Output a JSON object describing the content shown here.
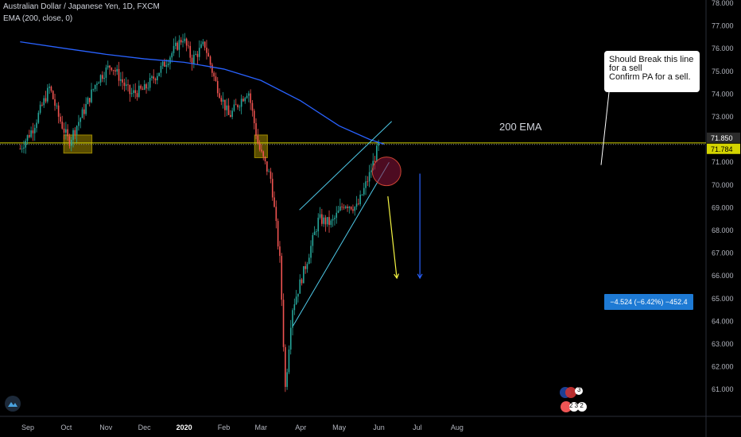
{
  "header": {
    "title": "Australian Dollar / Japanese Yen, 1D, FXCM",
    "indicator": "EMA (200, close, 0)"
  },
  "chart_data": {
    "type": "candlestick",
    "y_ticks": [
      61.0,
      62.0,
      63.0,
      64.0,
      65.0,
      66.0,
      67.0,
      68.0,
      69.0,
      70.0,
      71.0,
      73.0,
      74.0,
      75.0,
      76.0,
      77.0,
      78.0
    ],
    "x_ticks": [
      "Sep",
      "Oct",
      "Nov",
      "Dec",
      "2020",
      "Feb",
      "Mar",
      "Apr",
      "May",
      "Jun",
      "Jul",
      "Aug"
    ],
    "price_labels": [
      {
        "value": 71.85,
        "text": "71.850"
      },
      {
        "value": 71.784,
        "text": "71.784"
      }
    ],
    "ema_label": "200 EMA",
    "ema_points": [
      {
        "x": "2019-08-26",
        "y": 76.3
      },
      {
        "x": "2019-10-01",
        "y": 76.0
      },
      {
        "x": "2019-11-01",
        "y": 75.75
      },
      {
        "x": "2019-12-01",
        "y": 75.55
      },
      {
        "x": "2020-01-01",
        "y": 75.4
      },
      {
        "x": "2020-02-01",
        "y": 75.1
      },
      {
        "x": "2020-03-01",
        "y": 74.6
      },
      {
        "x": "2020-04-01",
        "y": 73.7
      },
      {
        "x": "2020-05-01",
        "y": 72.6
      },
      {
        "x": "2020-05-25",
        "y": 72.0
      },
      {
        "x": "2020-06-05",
        "y": 71.8
      }
    ],
    "price_path": [
      {
        "x": "2019-08-26",
        "y": 71.6
      },
      {
        "x": "2019-09-05",
        "y": 72.5
      },
      {
        "x": "2019-09-18",
        "y": 74.3
      },
      {
        "x": "2019-09-25",
        "y": 73.0
      },
      {
        "x": "2019-10-03",
        "y": 71.9
      },
      {
        "x": "2019-10-15",
        "y": 73.3
      },
      {
        "x": "2019-10-25",
        "y": 74.6
      },
      {
        "x": "2019-11-05",
        "y": 75.3
      },
      {
        "x": "2019-11-20",
        "y": 74.0
      },
      {
        "x": "2019-12-01",
        "y": 74.2
      },
      {
        "x": "2019-12-15",
        "y": 75.2
      },
      {
        "x": "2019-12-31",
        "y": 76.5
      },
      {
        "x": "2020-01-07",
        "y": 75.5
      },
      {
        "x": "2020-01-17",
        "y": 76.2
      },
      {
        "x": "2020-01-25",
        "y": 74.6
      },
      {
        "x": "2020-02-05",
        "y": 73.0
      },
      {
        "x": "2020-02-20",
        "y": 74.2
      },
      {
        "x": "2020-02-28",
        "y": 71.7
      },
      {
        "x": "2020-03-09",
        "y": 70.2
      },
      {
        "x": "2020-03-16",
        "y": 66.5
      },
      {
        "x": "2020-03-20",
        "y": 61.0
      },
      {
        "x": "2020-03-25",
        "y": 64.5
      },
      {
        "x": "2020-04-05",
        "y": 66.5
      },
      {
        "x": "2020-04-15",
        "y": 68.5
      },
      {
        "x": "2020-04-25",
        "y": 68.3
      },
      {
        "x": "2020-05-05",
        "y": 69.2
      },
      {
        "x": "2020-05-15",
        "y": 69.0
      },
      {
        "x": "2020-05-25",
        "y": 70.5
      },
      {
        "x": "2020-06-01",
        "y": 71.8
      }
    ],
    "trend_lines": [
      {
        "name": "channel-upper",
        "x1": "2020-03-31",
        "y1": 68.9,
        "x2": "2020-06-11",
        "y2": 72.8
      },
      {
        "name": "channel-lower",
        "x1": "2020-03-26",
        "y1": 63.8,
        "x2": "2020-06-09",
        "y2": 71.0
      }
    ],
    "support_level": 71.85,
    "zones": [
      {
        "name": "october-zone",
        "x1": "2019-09-29",
        "x2": "2019-10-21",
        "y1": 71.4,
        "y2": 72.2
      },
      {
        "name": "february-zone",
        "x1": "2020-02-25",
        "x2": "2020-03-06",
        "y1": 71.2,
        "y2": 72.2
      }
    ],
    "break_circle": {
      "x": "2020-06-07",
      "y": 70.6
    },
    "arrows": [
      {
        "name": "yellow-arrow",
        "x1": "2020-06-08",
        "y1": 69.5,
        "x2": "2020-06-15",
        "y2": 65.9
      },
      {
        "name": "blue-arrow",
        "x1": "2020-07-03",
        "y1": 70.5,
        "x2": "2020-07-03",
        "y2": 65.9
      }
    ],
    "measure_label": "−4.524 (−6.42%) −452.4",
    "note_lines": [
      "Should Break this line",
      "for a sell",
      "Confirm  PA for a sell."
    ]
  },
  "badges": {
    "flag_count": "3",
    "counts": "2 3 2"
  },
  "colors": {
    "up": "#26a69a",
    "down": "#ef5350",
    "ema": "#2962ff",
    "level": "#d4d400",
    "trend": "#4ec9e8",
    "arrow": "#f5f543",
    "measure": "#1e7ad4"
  }
}
